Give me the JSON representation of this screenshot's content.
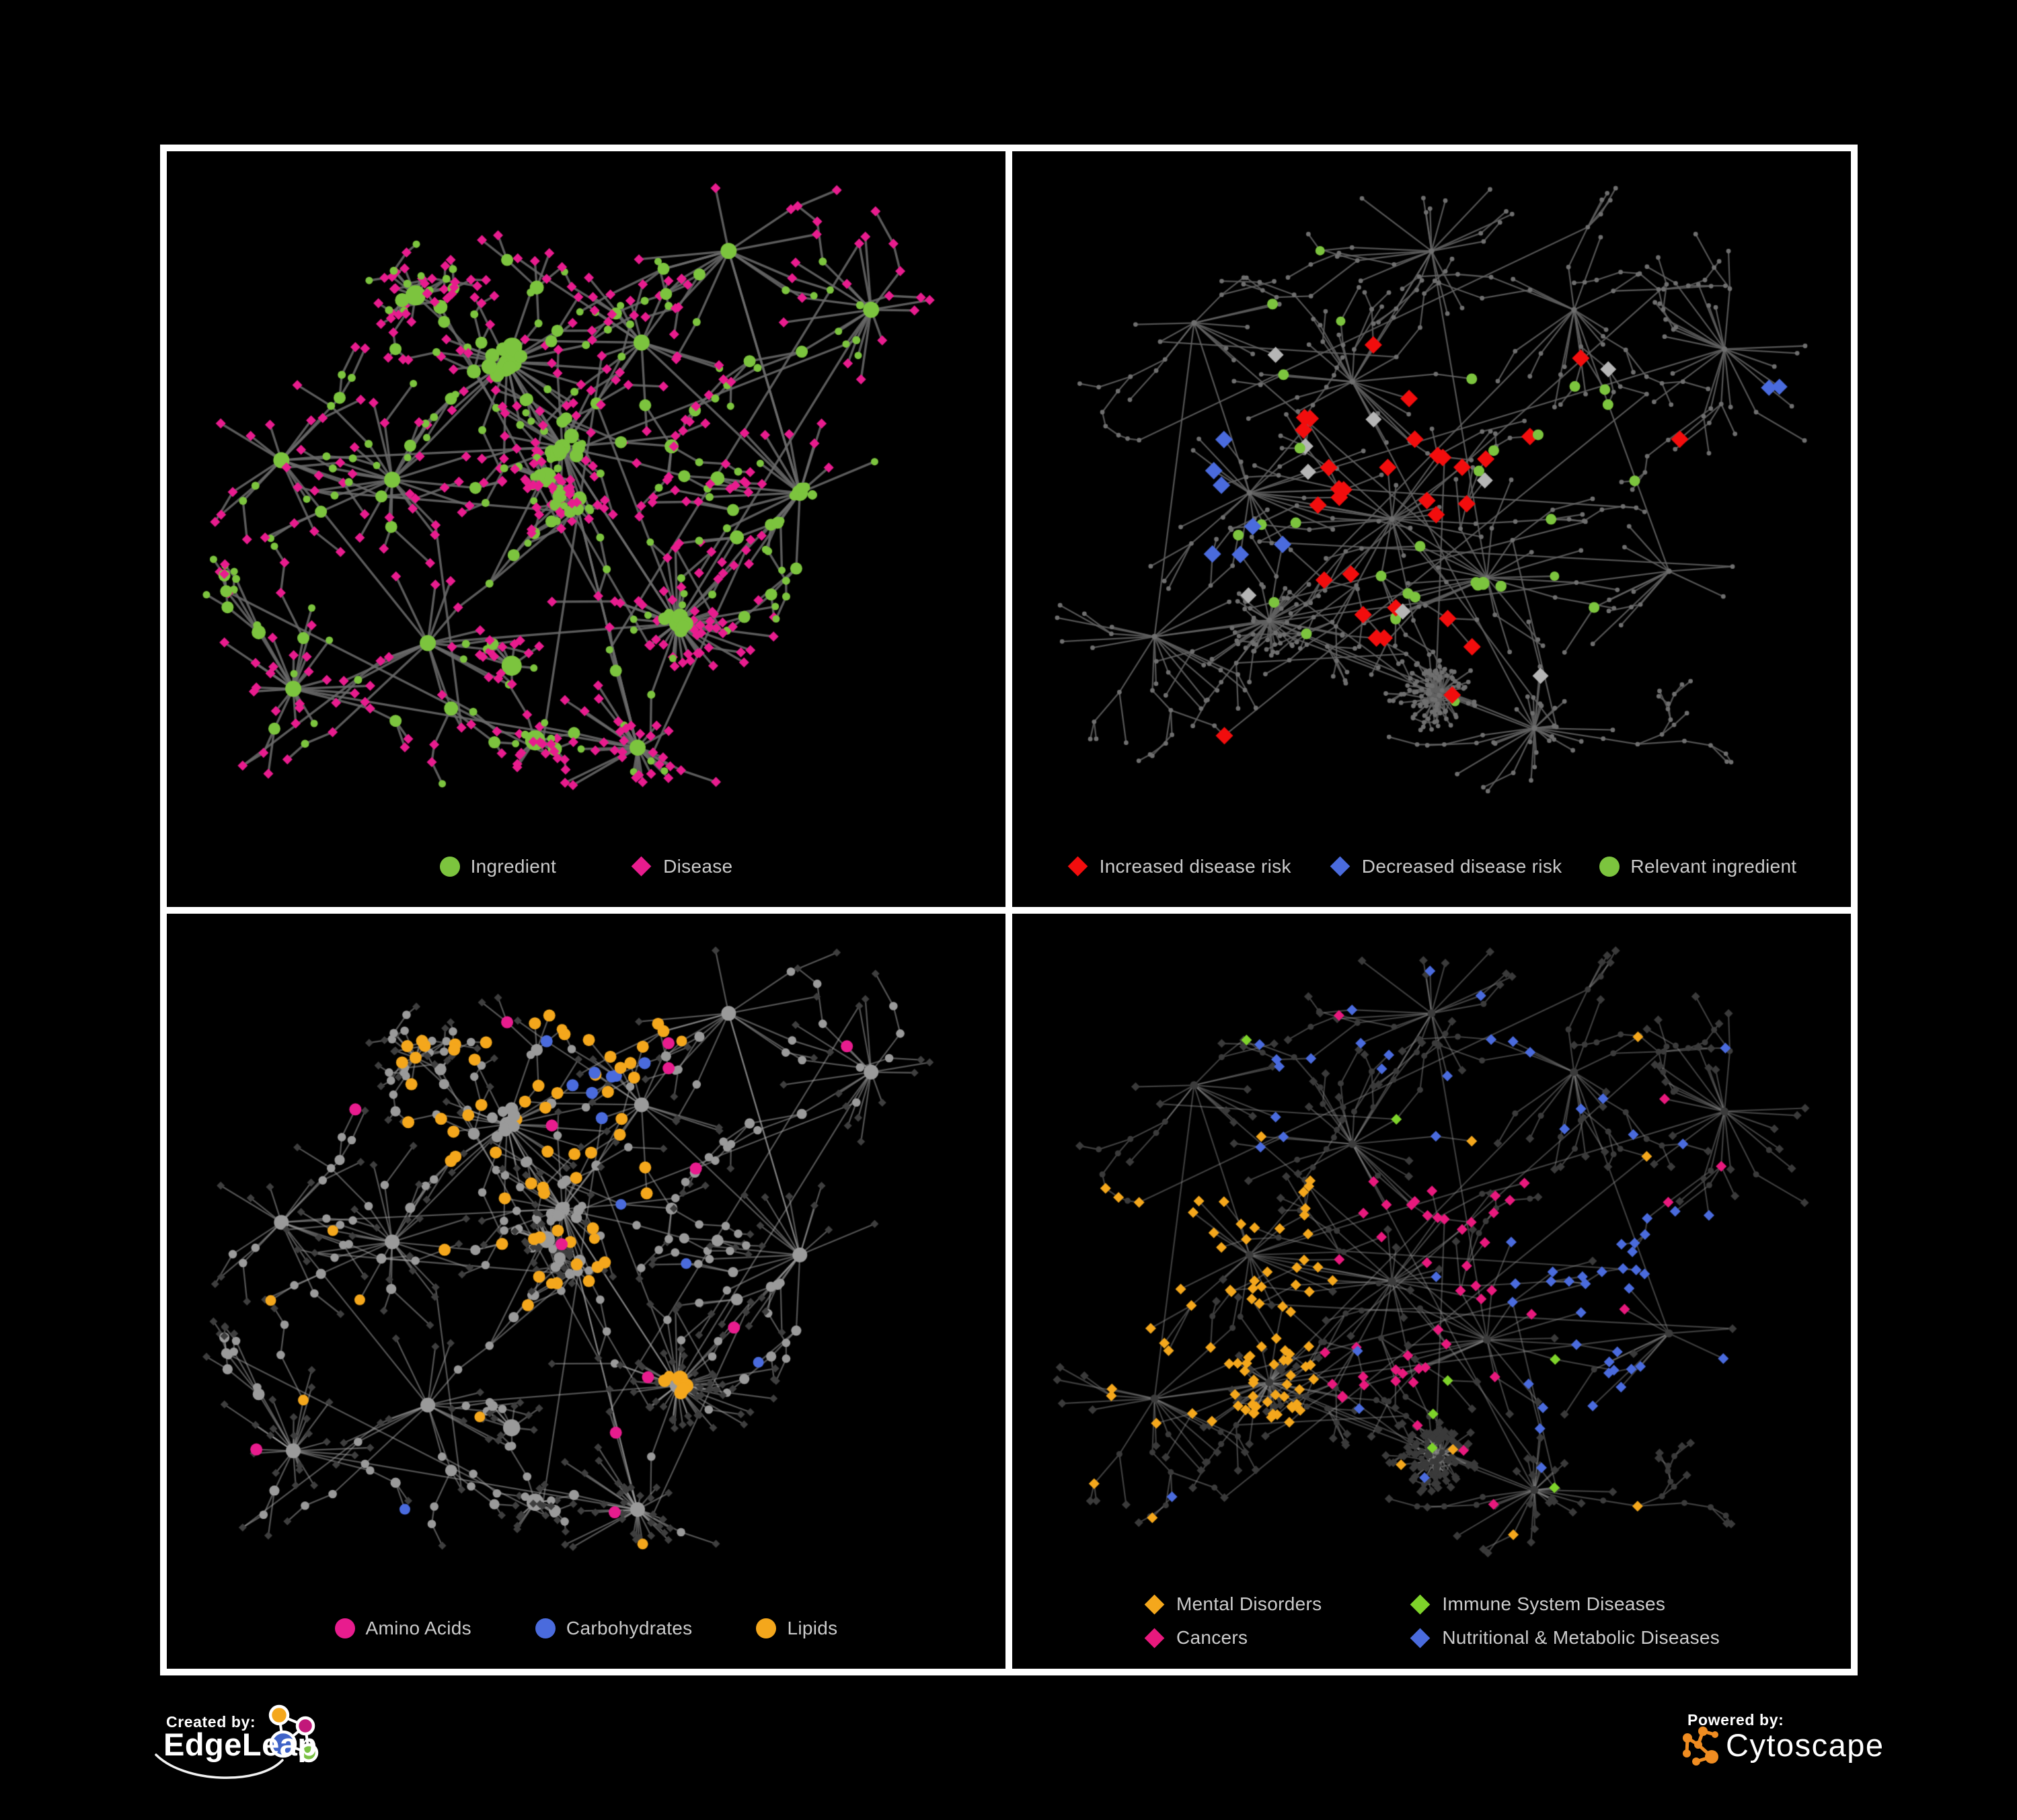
{
  "colors": {
    "background": "#000000",
    "panel_border": "#ffffff",
    "legend_text": "#cbcbcb",
    "ingredient_green": "#7cc43e",
    "disease_magenta": "#e81c8e",
    "risk_red": "#f20d0d",
    "risk_blue": "#4a6bdd",
    "neutral_gray_diamond": "#b5b5b5",
    "lipid_yellow": "#f4a71c",
    "immune_green": "#7ed32a",
    "cancer_pink": "#e8197d",
    "cytoscape_orange": "#ef8c21"
  },
  "panels": {
    "top_left": {
      "legend": [
        {
          "label": "Ingredient",
          "shape": "circle",
          "color": "#7cc43e"
        },
        {
          "label": "Disease",
          "shape": "diamond",
          "color": "#e81c8e"
        }
      ]
    },
    "top_right": {
      "legend": [
        {
          "label": "Increased disease risk",
          "shape": "diamond",
          "color": "#f20d0d"
        },
        {
          "label": "Decreased disease risk",
          "shape": "diamond",
          "color": "#4a6bdd"
        },
        {
          "label": "Relevant ingredient",
          "shape": "circle",
          "color": "#7cc43e"
        }
      ]
    },
    "bottom_left": {
      "legend": [
        {
          "label": "Amino Acids",
          "shape": "circle",
          "color": "#e81c8e"
        },
        {
          "label": "Carbohydrates",
          "shape": "circle",
          "color": "#4a6bdd"
        },
        {
          "label": "Lipids",
          "shape": "circle",
          "color": "#f4a71c"
        }
      ]
    },
    "bottom_right": {
      "legend": [
        {
          "label": "Mental Disorders",
          "shape": "diamond",
          "color": "#f4a71c"
        },
        {
          "label": "Immune System Diseases",
          "shape": "diamond",
          "color": "#7ed32a"
        },
        {
          "label": "Cancers",
          "shape": "diamond",
          "color": "#e8197d"
        },
        {
          "label": "Nutritional & Metabolic Diseases",
          "shape": "diamond",
          "color": "#4a6bdd"
        }
      ]
    }
  },
  "footer": {
    "created_by_label": "Created by:",
    "created_by_brand": "EdgeLeap",
    "powered_by_label": "Powered by:",
    "powered_by_brand": "Cytoscape",
    "edgeleap_logo_colors": [
      "#f4a71c",
      "#c2187a",
      "#3f63c8",
      "#7ac143"
    ]
  }
}
